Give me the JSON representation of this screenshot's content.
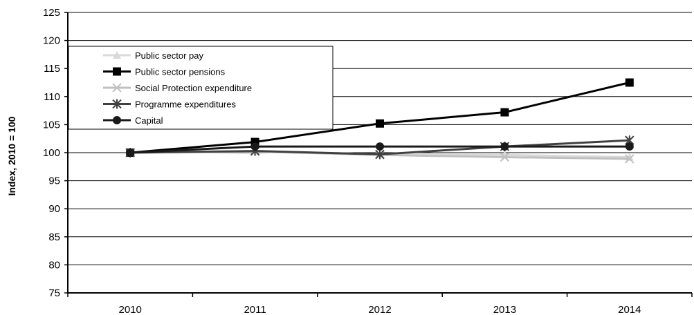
{
  "chart_data": {
    "type": "line",
    "title": "",
    "xlabel": "",
    "ylabel": "Index, 2010 = 100",
    "categories": [
      "2010",
      "2011",
      "2012",
      "2013",
      "2014"
    ],
    "ylim": [
      75,
      125
    ],
    "yticks": [
      75,
      80,
      85,
      90,
      95,
      100,
      105,
      110,
      115,
      120,
      125
    ],
    "grid": "horizontal",
    "legend_position": "top-left",
    "series": [
      {
        "name": "Public sector pay",
        "color": "#d9d9d9",
        "marker": "triangle",
        "values": [
          100,
          100.3,
          99.7,
          99.6,
          99.2
        ]
      },
      {
        "name": "Public sector pensions",
        "color": "#000000",
        "marker": "square",
        "values": [
          100,
          101.9,
          105.2,
          107.2,
          112.5
        ]
      },
      {
        "name": "Social Protection expenditure",
        "color": "#c0c0c0",
        "marker": "x",
        "values": [
          100,
          100.2,
          99.6,
          99.2,
          98.9
        ]
      },
      {
        "name": "Programme expenditures",
        "color": "#404040",
        "marker": "star",
        "values": [
          100,
          100.3,
          99.7,
          101.1,
          102.2
        ]
      },
      {
        "name": "Capital",
        "color": "#1a1a1a",
        "marker": "circle",
        "values": [
          100,
          101.1,
          101.1,
          101.1,
          101.1
        ]
      }
    ]
  }
}
